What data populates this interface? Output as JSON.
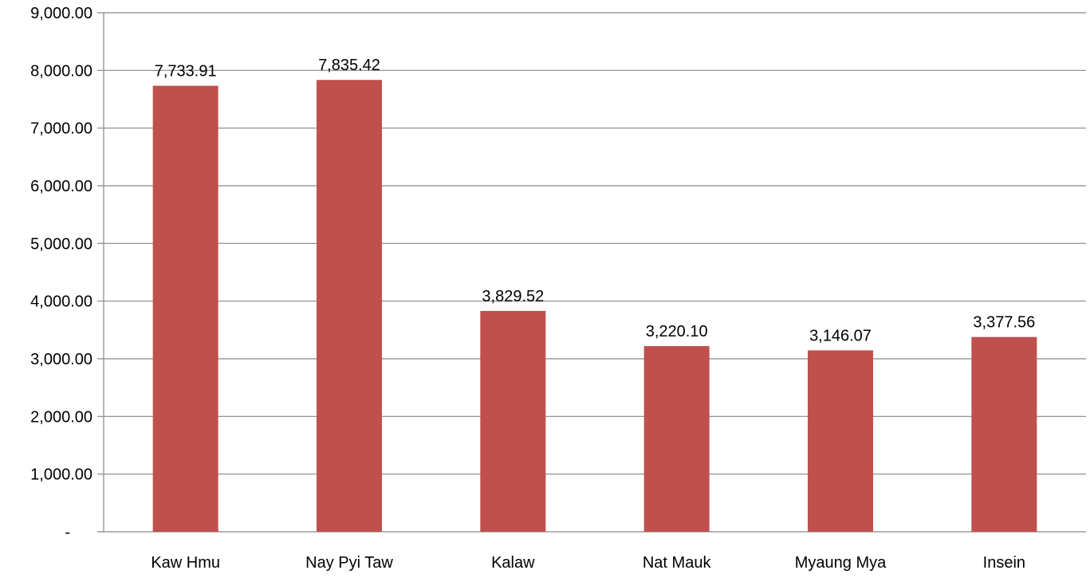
{
  "chart_data": {
    "type": "bar",
    "categories": [
      "Kaw Hmu",
      "Nay Pyi Taw",
      "Kalaw",
      "Nat Mauk",
      "Myaung Mya",
      "Insein"
    ],
    "series": [
      {
        "values": [
          7733.91,
          7835.42,
          3829.52,
          3220.1,
          3146.07,
          3377.56
        ],
        "color": "#c0504d"
      }
    ],
    "data_labels": [
      "7,733.91",
      "7,835.42",
      "3,829.52",
      "3,220.10",
      "3,146.07",
      "3,377.56"
    ],
    "ylim": [
      0,
      9000
    ],
    "yticks": [
      {
        "value": 0,
        "label": "-"
      },
      {
        "value": 1000,
        "label": "1,000.00"
      },
      {
        "value": 2000,
        "label": "2,000.00"
      },
      {
        "value": 3000,
        "label": "3,000.00"
      },
      {
        "value": 4000,
        "label": "4,000.00"
      },
      {
        "value": 5000,
        "label": "5,000.00"
      },
      {
        "value": 6000,
        "label": "6,000.00"
      },
      {
        "value": 7000,
        "label": "7,000.00"
      },
      {
        "value": 8000,
        "label": "8,000.00"
      },
      {
        "value": 9000,
        "label": "9,000.00"
      }
    ],
    "title": "",
    "xlabel": "",
    "ylabel": "",
    "grid": true,
    "gridline_color": "#868686",
    "legend": "none"
  }
}
